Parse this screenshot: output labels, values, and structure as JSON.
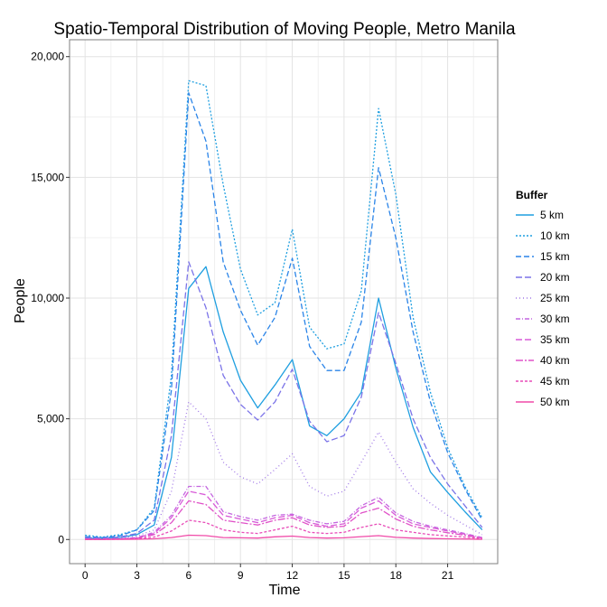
{
  "chart_data": {
    "type": "line",
    "title": "Spatio-Temporal Distribution of Moving People, Metro Manila",
    "xlabel": "Time",
    "ylabel": "People",
    "xlim": [
      0,
      24
    ],
    "ylim": [
      -1000,
      20000
    ],
    "x_ticks": [
      0,
      3,
      6,
      9,
      12,
      15,
      18,
      21
    ],
    "x_tick_labels": [
      "0",
      "3",
      "6",
      "9",
      "12",
      "15",
      "18",
      "21"
    ],
    "y_ticks": [
      0,
      5000,
      10000,
      15000,
      20000
    ],
    "y_tick_labels": [
      "0",
      "5,000",
      "10,000",
      "15,000",
      "20,000"
    ],
    "grid": true,
    "legend": {
      "title": "Buffer",
      "position": "right"
    },
    "x": [
      0,
      1,
      2,
      3,
      4,
      5,
      6,
      7,
      8,
      9,
      10,
      11,
      12,
      13,
      14,
      15,
      16,
      17,
      18,
      19,
      20,
      21,
      22,
      23
    ],
    "series": [
      {
        "name": "5 km",
        "color": "#1f9fe0",
        "dash": "",
        "values": [
          60,
          50,
          80,
          200,
          600,
          3400,
          10400,
          11300,
          8600,
          6600,
          5450,
          6400,
          7450,
          4700,
          4300,
          5000,
          6100,
          10000,
          7100,
          4650,
          2800,
          1950,
          1150,
          400
        ]
      },
      {
        "name": "10 km",
        "color": "#1f9fe0",
        "dash": "2,2",
        "values": [
          180,
          100,
          200,
          400,
          1300,
          6800,
          19000,
          18800,
          14700,
          11200,
          9300,
          9800,
          12850,
          8800,
          7900,
          8100,
          10300,
          17850,
          14300,
          9200,
          6100,
          3800,
          2200,
          900
        ]
      },
      {
        "name": "15 km",
        "color": "#2a84e8",
        "dash": "6,3",
        "values": [
          120,
          80,
          150,
          400,
          1200,
          6200,
          18500,
          16500,
          11500,
          9500,
          8050,
          9200,
          11650,
          8000,
          7000,
          7000,
          9000,
          15400,
          12500,
          8600,
          5700,
          3600,
          2100,
          800
        ]
      },
      {
        "name": "20 km",
        "color": "#7b73e8",
        "dash": "7,3",
        "values": [
          80,
          60,
          100,
          250,
          800,
          4300,
          11500,
          9600,
          6800,
          5600,
          4950,
          5700,
          7050,
          4900,
          4050,
          4300,
          5900,
          9400,
          7300,
          5000,
          3400,
          2300,
          1400,
          500
        ]
      },
      {
        "name": "25 km",
        "color": "#a078e6",
        "dash": "1,3",
        "values": [
          40,
          30,
          60,
          150,
          400,
          2000,
          5700,
          5000,
          3200,
          2600,
          2300,
          2900,
          3550,
          2200,
          1800,
          2000,
          3200,
          4450,
          3200,
          2100,
          1500,
          1000,
          600,
          200
        ]
      },
      {
        "name": "30 km",
        "color": "#c466e0",
        "dash": "5,2,1,2",
        "values": [
          20,
          15,
          30,
          80,
          300,
          1000,
          2200,
          2200,
          1150,
          950,
          800,
          1000,
          1050,
          800,
          650,
          750,
          1400,
          1750,
          1100,
          750,
          550,
          400,
          250,
          80
        ]
      },
      {
        "name": "35 km",
        "color": "#d85bd8",
        "dash": "7,3",
        "values": [
          15,
          10,
          25,
          70,
          250,
          900,
          2000,
          1850,
          1000,
          850,
          700,
          900,
          1000,
          700,
          550,
          650,
          1300,
          1600,
          1000,
          650,
          500,
          350,
          220,
          60
        ]
      },
      {
        "name": "40 km",
        "color": "#e052c8",
        "dash": "8,2,2,2",
        "values": [
          10,
          8,
          20,
          50,
          200,
          700,
          1600,
          1450,
          800,
          700,
          600,
          800,
          900,
          600,
          500,
          550,
          1100,
          1300,
          850,
          550,
          400,
          280,
          180,
          50
        ]
      },
      {
        "name": "45 km",
        "color": "#e84cb8",
        "dash": "3,2",
        "values": [
          5,
          5,
          10,
          30,
          100,
          350,
          800,
          700,
          400,
          300,
          250,
          400,
          550,
          300,
          250,
          300,
          500,
          650,
          400,
          300,
          200,
          150,
          100,
          30
        ]
      },
      {
        "name": "50 km",
        "color": "#f04aa8",
        "dash": "",
        "values": [
          2,
          2,
          5,
          10,
          30,
          80,
          180,
          160,
          80,
          70,
          60,
          110,
          140,
          80,
          60,
          70,
          120,
          160,
          90,
          60,
          40,
          30,
          20,
          8
        ]
      }
    ]
  }
}
